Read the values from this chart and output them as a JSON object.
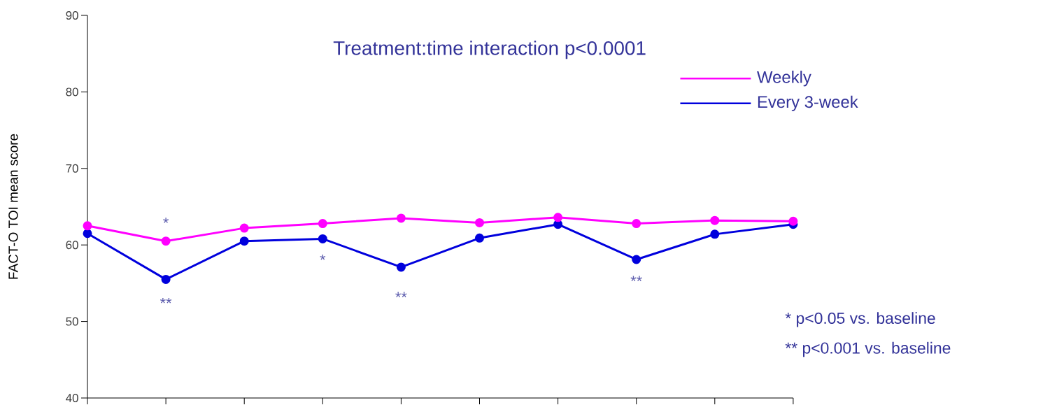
{
  "chart_data": {
    "type": "line",
    "title": "Treatment:time interaction p<0.0001",
    "ylabel": "FACT-O TOI mean score",
    "categories": [
      null,
      null,
      null,
      null,
      null,
      null,
      null,
      null,
      null,
      null
    ],
    "ylim": [
      40,
      90
    ],
    "yticks": [
      40,
      50,
      60,
      70,
      80,
      90
    ],
    "series": [
      {
        "name": "Weekly",
        "color": "#ff00ff",
        "values": [
          62.5,
          60.5,
          62.2,
          62.8,
          63.5,
          62.9,
          63.6,
          62.8,
          63.2,
          63.1
        ]
      },
      {
        "name": "Every 3-week",
        "color": "#0000dd",
        "values": [
          61.5,
          55.5,
          60.5,
          60.8,
          57.1,
          60.9,
          62.7,
          58.1,
          61.4,
          62.7
        ]
      }
    ],
    "marker": "circle",
    "line_style": "solid",
    "grid": false,
    "legend": "top right",
    "annotations": [
      "*",
      "**",
      "*",
      "**",
      "**",
      "* p<0.05 vs. baseline",
      "** p<0.001 vs. baseline"
    ]
  }
}
